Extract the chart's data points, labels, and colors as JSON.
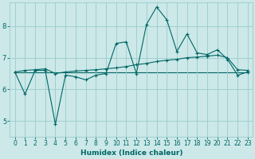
{
  "title": "",
  "xlabel": "Humidex (Indice chaleur)",
  "ylabel": "",
  "bg_color": "#cce8e8",
  "grid_color": "#99cccc",
  "line_color": "#006666",
  "xlim": [
    -0.5,
    23.5
  ],
  "ylim": [
    4.5,
    8.75
  ],
  "xticks": [
    0,
    1,
    2,
    3,
    4,
    5,
    6,
    7,
    8,
    9,
    10,
    11,
    12,
    13,
    14,
    15,
    16,
    17,
    18,
    19,
    20,
    21,
    22,
    23
  ],
  "yticks": [
    5,
    6,
    7,
    8
  ],
  "line1_x": [
    0,
    1,
    2,
    3,
    4,
    5,
    6,
    7,
    8,
    9,
    10,
    11,
    12,
    13,
    14,
    15,
    16,
    17,
    18,
    19,
    20,
    21,
    22,
    23
  ],
  "line1_y": [
    6.55,
    5.85,
    6.6,
    6.6,
    4.9,
    6.45,
    6.4,
    6.3,
    6.45,
    6.5,
    7.45,
    7.5,
    6.5,
    8.05,
    8.6,
    8.2,
    7.2,
    7.75,
    7.15,
    7.1,
    7.25,
    6.95,
    6.45,
    6.55
  ],
  "line2_x": [
    0,
    1,
    2,
    3,
    4,
    5,
    6,
    7,
    8,
    9,
    10,
    11,
    12,
    13,
    14,
    15,
    16,
    17,
    18,
    19,
    20,
    21,
    22,
    23
  ],
  "line2_y": [
    6.55,
    6.6,
    6.62,
    6.65,
    6.5,
    6.55,
    6.58,
    6.6,
    6.62,
    6.65,
    6.68,
    6.72,
    6.78,
    6.82,
    6.88,
    6.92,
    6.95,
    7.0,
    7.02,
    7.05,
    7.08,
    7.0,
    6.62,
    6.6
  ],
  "line3_x": [
    0,
    1,
    2,
    3,
    4,
    5,
    6,
    7,
    8,
    9,
    10,
    11,
    12,
    13,
    14,
    15,
    16,
    17,
    18,
    19,
    20,
    21,
    22,
    23
  ],
  "line3_y": [
    6.55,
    6.55,
    6.55,
    6.55,
    6.55,
    6.55,
    6.55,
    6.55,
    6.55,
    6.55,
    6.55,
    6.55,
    6.55,
    6.55,
    6.55,
    6.55,
    6.55,
    6.55,
    6.55,
    6.55,
    6.55,
    6.55,
    6.55,
    6.55
  ],
  "marker": "+",
  "markersize": 3,
  "linewidth": 0.8,
  "xlabel_fontsize": 6.5,
  "tick_fontsize": 5.5
}
